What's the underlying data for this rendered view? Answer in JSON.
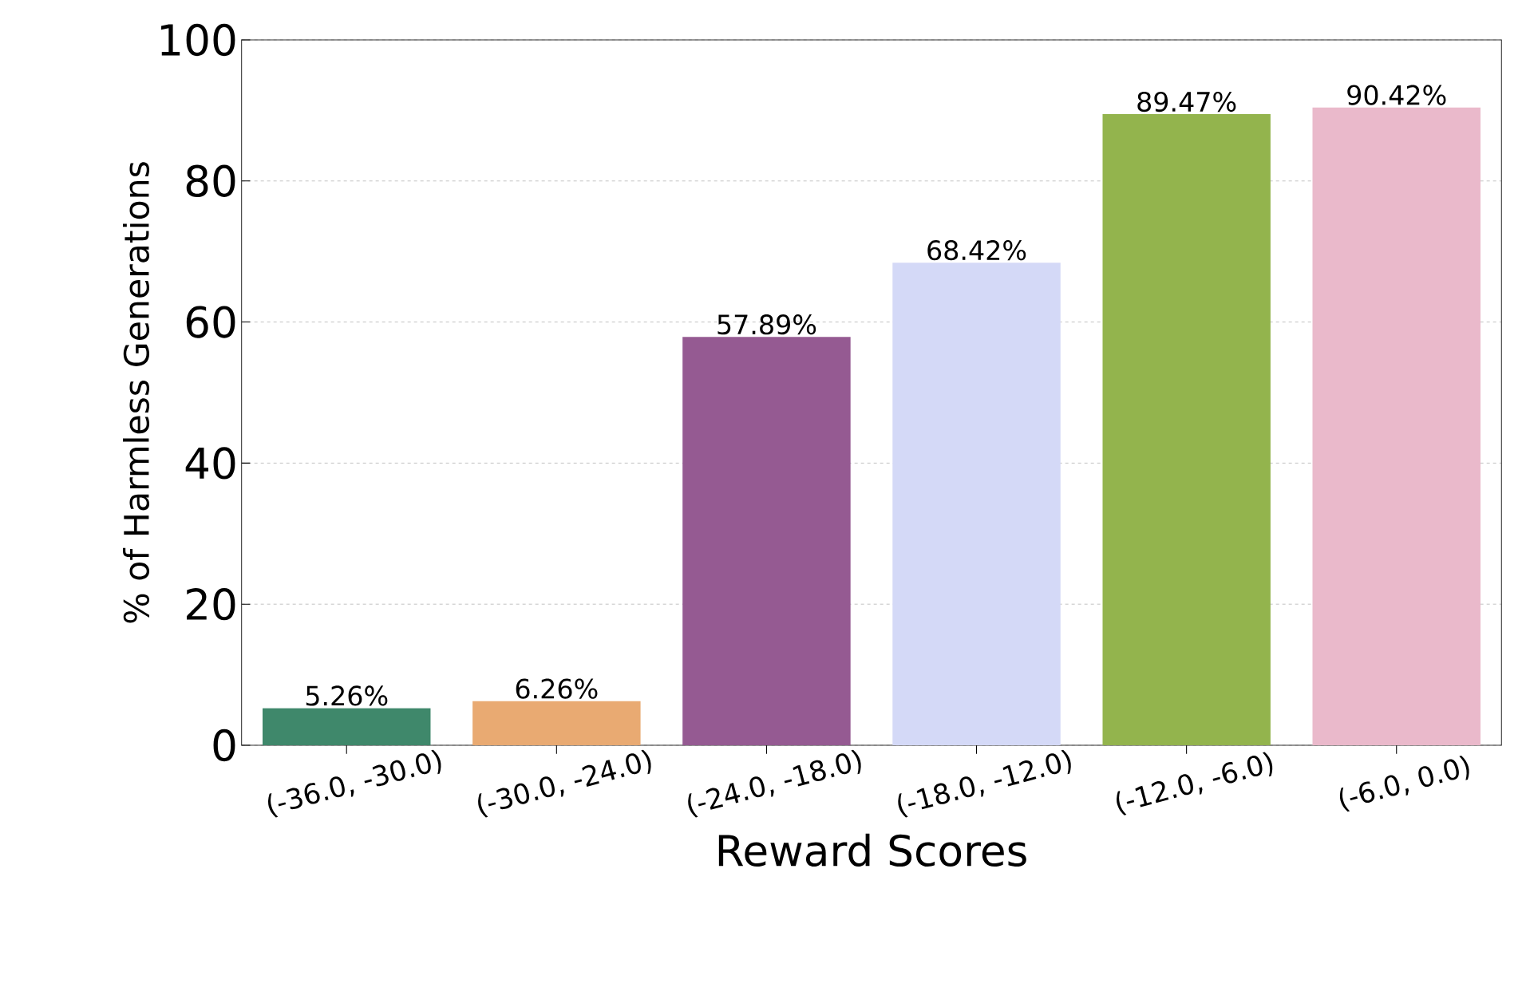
{
  "chart_data": {
    "type": "bar",
    "xlabel": "Reward Scores",
    "ylabel": "% of Harmless Generations",
    "categories": [
      "(-36.0, -30.0)",
      "(-30.0, -24.0)",
      "(-24.0, -18.0)",
      "(-18.0, -12.0)",
      "(-12.0, -6.0)",
      "(-6.0, 0.0)"
    ],
    "values": [
      5.26,
      6.26,
      57.89,
      68.42,
      89.47,
      90.42
    ],
    "value_labels": [
      "5.26%",
      "6.26%",
      "57.89%",
      "68.42%",
      "89.47%",
      "90.42%"
    ],
    "colors": [
      "#3f886b",
      "#e9aa72",
      "#955a92",
      "#d4d9f7",
      "#93b44d",
      "#eab9cb"
    ],
    "ylim": [
      0,
      100
    ],
    "yticks": [
      0,
      20,
      40,
      60,
      80,
      100
    ],
    "grid": "y"
  }
}
